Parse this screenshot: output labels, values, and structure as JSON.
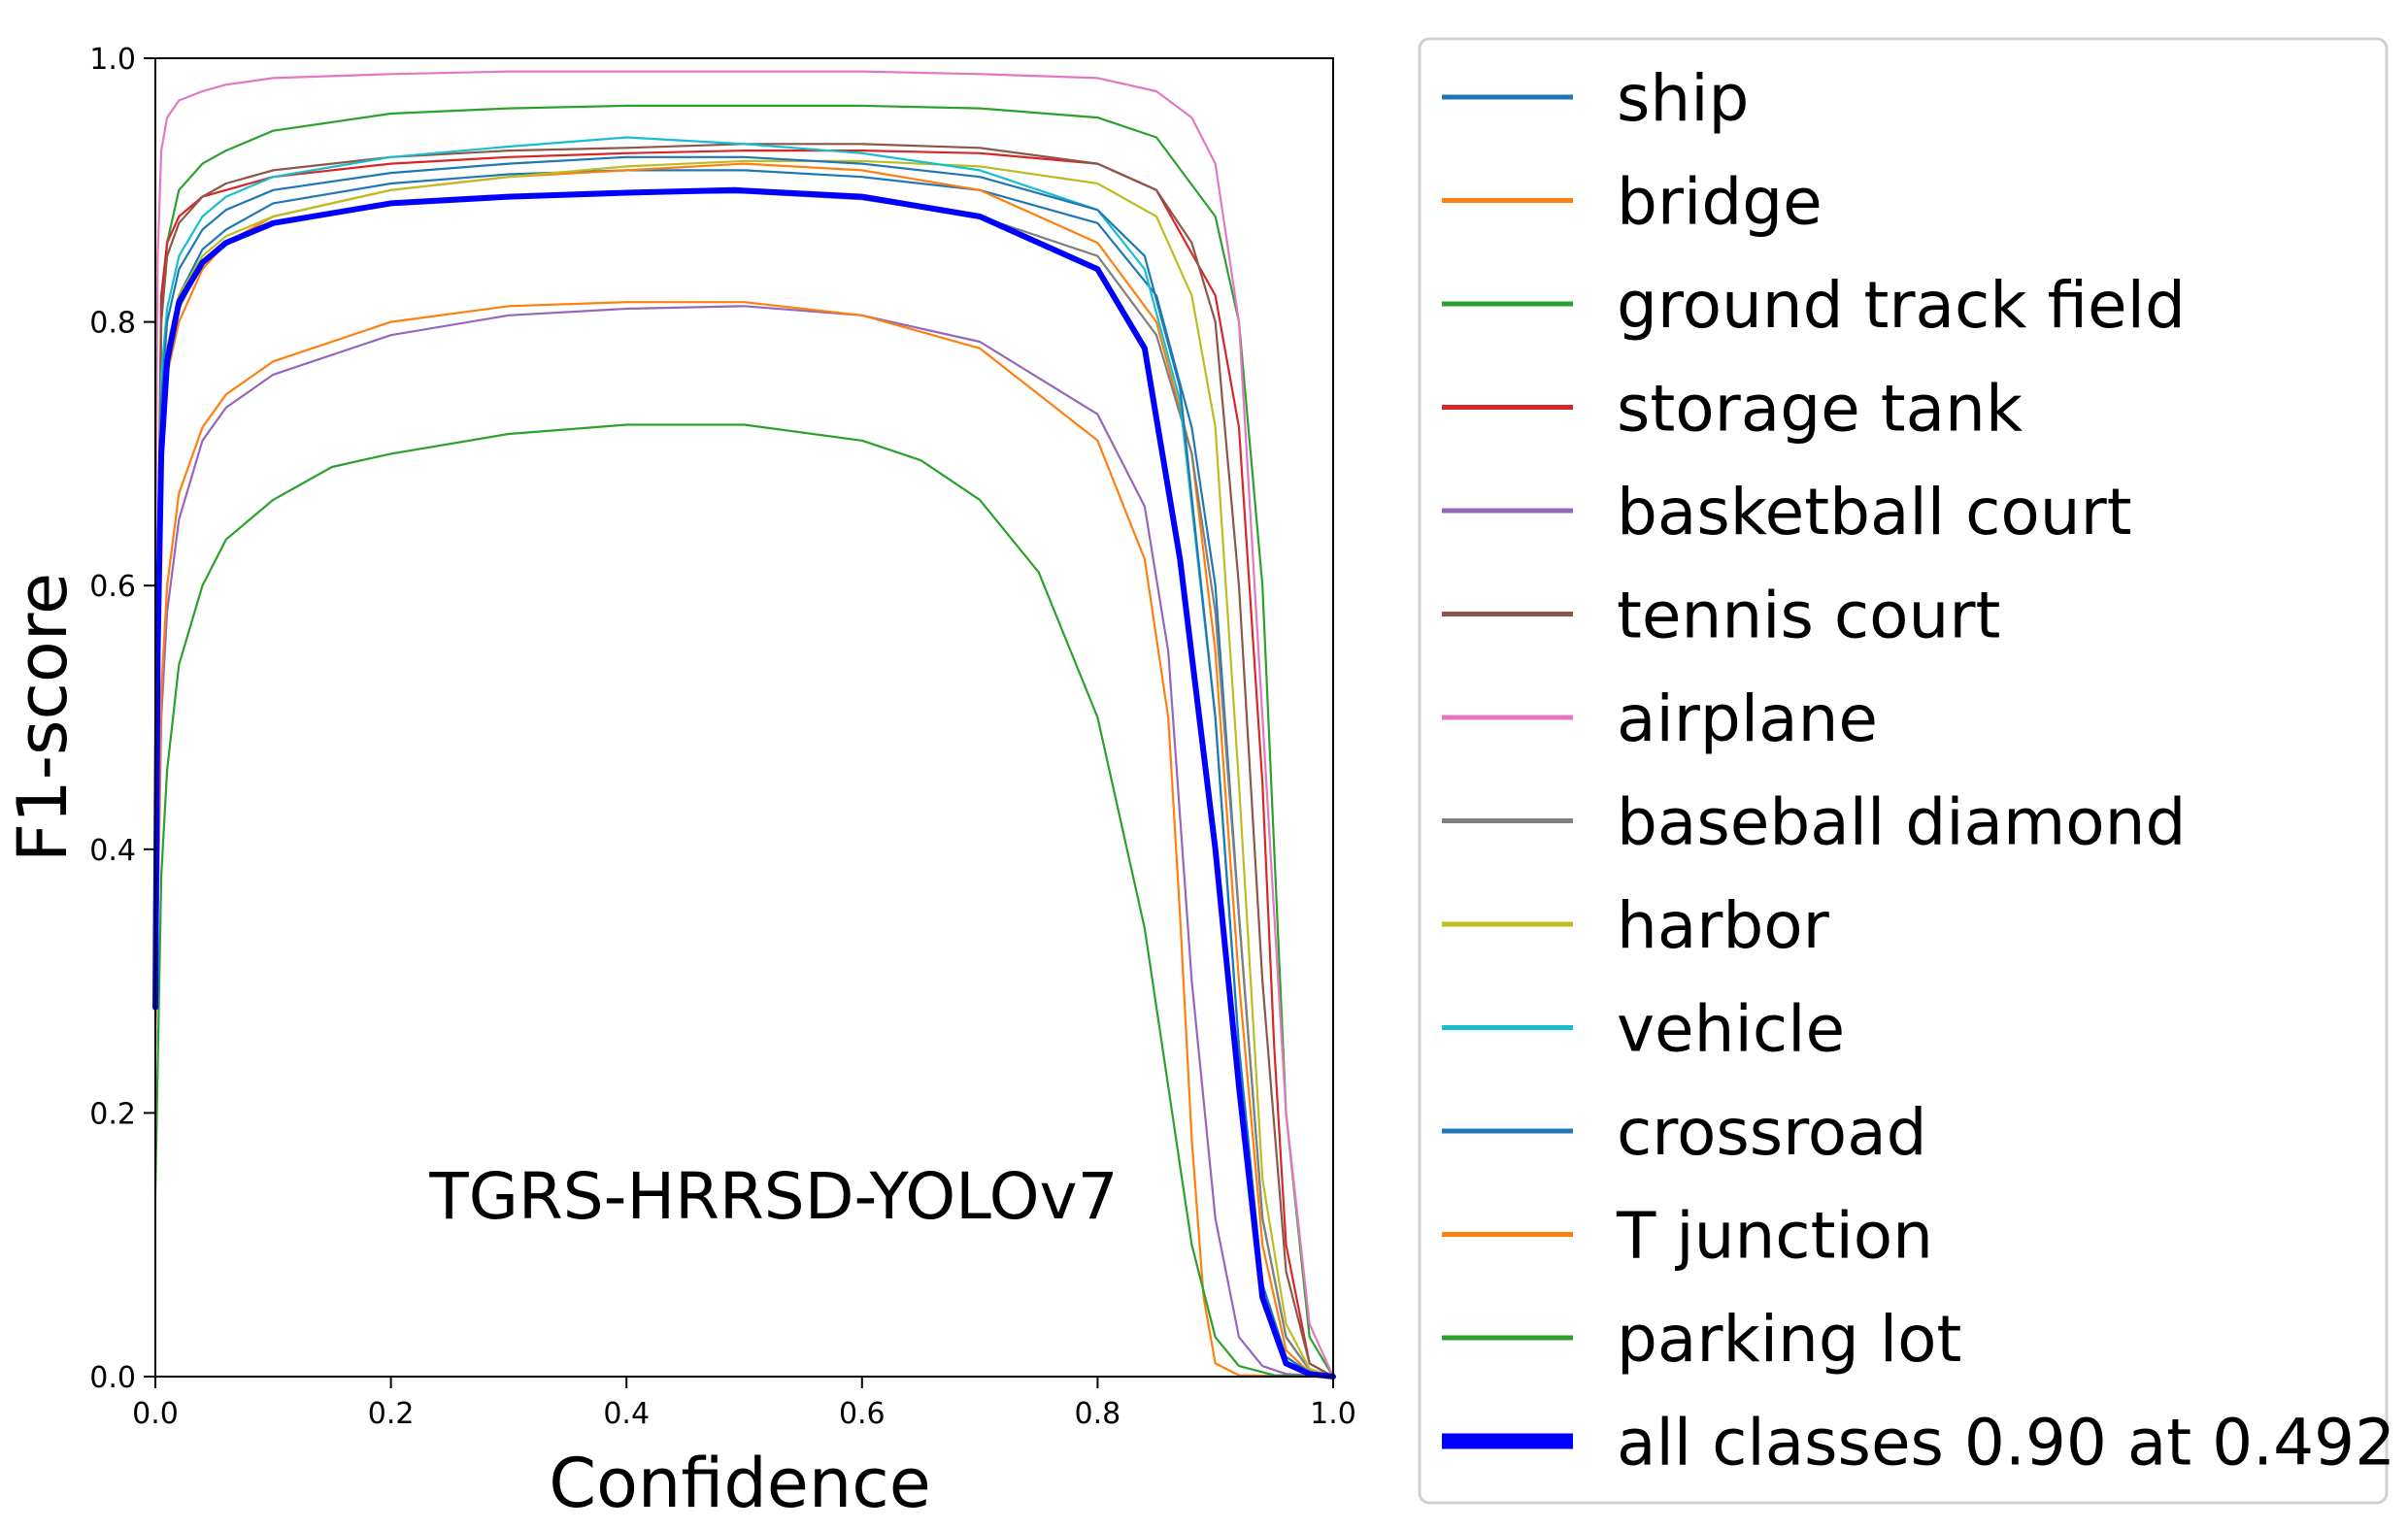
{
  "chart_data": {
    "type": "line",
    "title": "",
    "annotation": "TGRS-HRRSD-YOLOv7",
    "xlabel": "Confidence",
    "ylabel": "F1-score",
    "xlim": [
      0.0,
      1.0
    ],
    "ylim": [
      0.0,
      1.0
    ],
    "xticks": [
      0.0,
      0.2,
      0.4,
      0.6,
      0.8,
      1.0
    ],
    "yticks": [
      0.0,
      0.2,
      0.4,
      0.6,
      0.8,
      1.0
    ],
    "xtick_labels": [
      "0.0",
      "0.2",
      "0.4",
      "0.6",
      "0.8",
      "1.0"
    ],
    "ytick_labels": [
      "0.0",
      "0.2",
      "0.4",
      "0.6",
      "0.8",
      "1.0"
    ],
    "grid": false,
    "legend_position": "right-outside",
    "series": [
      {
        "name": "ship",
        "color": "#1f77b4",
        "width": 2.2,
        "x": [
          0.0,
          0.005,
          0.01,
          0.02,
          0.04,
          0.06,
          0.1,
          0.2,
          0.3,
          0.4,
          0.5,
          0.6,
          0.7,
          0.8,
          0.85,
          0.88,
          0.9,
          0.92,
          0.94,
          0.96,
          0.98,
          1.0
        ],
        "y": [
          0.35,
          0.72,
          0.78,
          0.82,
          0.855,
          0.87,
          0.89,
          0.905,
          0.912,
          0.915,
          0.915,
          0.91,
          0.9,
          0.875,
          0.82,
          0.72,
          0.6,
          0.35,
          0.12,
          0.03,
          0.005,
          0.0
        ]
      },
      {
        "name": "bridge",
        "color": "#ff7f0e",
        "width": 2.2,
        "x": [
          0.0,
          0.005,
          0.01,
          0.02,
          0.04,
          0.06,
          0.1,
          0.2,
          0.3,
          0.4,
          0.5,
          0.6,
          0.7,
          0.8,
          0.85,
          0.88,
          0.9,
          0.92,
          0.94,
          0.96,
          0.98,
          1.0
        ],
        "y": [
          0.3,
          0.7,
          0.76,
          0.8,
          0.84,
          0.86,
          0.88,
          0.9,
          0.91,
          0.915,
          0.92,
          0.915,
          0.9,
          0.86,
          0.8,
          0.7,
          0.55,
          0.3,
          0.1,
          0.02,
          0.003,
          0.0
        ]
      },
      {
        "name": "ground track field",
        "color": "#2ca02c",
        "width": 2.2,
        "x": [
          0.0,
          0.005,
          0.01,
          0.02,
          0.04,
          0.06,
          0.1,
          0.2,
          0.3,
          0.4,
          0.5,
          0.6,
          0.7,
          0.8,
          0.85,
          0.9,
          0.92,
          0.94,
          0.95,
          0.96,
          0.98,
          1.0
        ],
        "y": [
          0.4,
          0.8,
          0.86,
          0.9,
          0.92,
          0.93,
          0.945,
          0.958,
          0.962,
          0.964,
          0.964,
          0.964,
          0.962,
          0.955,
          0.94,
          0.88,
          0.8,
          0.6,
          0.4,
          0.2,
          0.03,
          0.0
        ]
      },
      {
        "name": "storage tank",
        "color": "#d62728",
        "width": 2.2,
        "x": [
          0.0,
          0.005,
          0.01,
          0.02,
          0.04,
          0.06,
          0.1,
          0.2,
          0.3,
          0.4,
          0.5,
          0.6,
          0.7,
          0.8,
          0.85,
          0.9,
          0.92,
          0.94,
          0.95,
          0.96,
          0.98,
          1.0
        ],
        "y": [
          0.45,
          0.82,
          0.86,
          0.88,
          0.895,
          0.9,
          0.91,
          0.92,
          0.925,
          0.928,
          0.93,
          0.93,
          0.928,
          0.92,
          0.9,
          0.82,
          0.72,
          0.45,
          0.25,
          0.1,
          0.01,
          0.0
        ]
      },
      {
        "name": "basketball court",
        "color": "#9467bd",
        "width": 2.2,
        "x": [
          0.0,
          0.005,
          0.01,
          0.02,
          0.04,
          0.06,
          0.1,
          0.2,
          0.3,
          0.4,
          0.5,
          0.6,
          0.7,
          0.8,
          0.84,
          0.86,
          0.88,
          0.9,
          0.92,
          0.94,
          0.96,
          1.0
        ],
        "y": [
          0.25,
          0.5,
          0.58,
          0.65,
          0.71,
          0.735,
          0.76,
          0.79,
          0.805,
          0.81,
          0.812,
          0.805,
          0.785,
          0.73,
          0.66,
          0.55,
          0.3,
          0.12,
          0.03,
          0.008,
          0.002,
          0.0
        ]
      },
      {
        "name": "tennis court",
        "color": "#8c564b",
        "width": 2.2,
        "x": [
          0.0,
          0.005,
          0.01,
          0.02,
          0.04,
          0.06,
          0.1,
          0.2,
          0.3,
          0.4,
          0.5,
          0.6,
          0.7,
          0.8,
          0.85,
          0.88,
          0.9,
          0.92,
          0.94,
          0.96,
          0.98,
          1.0
        ],
        "y": [
          0.45,
          0.8,
          0.85,
          0.875,
          0.895,
          0.905,
          0.915,
          0.925,
          0.93,
          0.932,
          0.935,
          0.935,
          0.932,
          0.92,
          0.9,
          0.86,
          0.8,
          0.6,
          0.3,
          0.08,
          0.01,
          0.0
        ]
      },
      {
        "name": "airplane",
        "color": "#e377c2",
        "width": 2.2,
        "x": [
          0.0,
          0.002,
          0.005,
          0.01,
          0.02,
          0.04,
          0.06,
          0.1,
          0.2,
          0.3,
          0.4,
          0.5,
          0.6,
          0.7,
          0.8,
          0.85,
          0.88,
          0.9,
          0.92,
          0.94,
          0.96,
          0.98,
          1.0
        ],
        "y": [
          0.6,
          0.85,
          0.93,
          0.955,
          0.968,
          0.975,
          0.98,
          0.985,
          0.988,
          0.99,
          0.99,
          0.99,
          0.99,
          0.988,
          0.985,
          0.975,
          0.955,
          0.92,
          0.8,
          0.5,
          0.2,
          0.04,
          0.0
        ]
      },
      {
        "name": "baseball diamond",
        "color": "#7f7f7f",
        "width": 2.2,
        "x": [
          0.0,
          0.005,
          0.01,
          0.02,
          0.04,
          0.06,
          0.1,
          0.2,
          0.3,
          0.4,
          0.5,
          0.6,
          0.7,
          0.8,
          0.85,
          0.88,
          0.9,
          0.92,
          0.94,
          0.96,
          0.98,
          1.0
        ],
        "y": [
          0.3,
          0.7,
          0.77,
          0.81,
          0.845,
          0.86,
          0.875,
          0.89,
          0.895,
          0.898,
          0.898,
          0.893,
          0.88,
          0.85,
          0.79,
          0.7,
          0.58,
          0.35,
          0.12,
          0.03,
          0.005,
          0.0
        ]
      },
      {
        "name": "harbor",
        "color": "#bcbd22",
        "width": 2.2,
        "x": [
          0.0,
          0.005,
          0.01,
          0.02,
          0.04,
          0.06,
          0.1,
          0.2,
          0.3,
          0.4,
          0.5,
          0.6,
          0.7,
          0.8,
          0.85,
          0.88,
          0.9,
          0.92,
          0.94,
          0.96,
          0.98,
          1.0
        ],
        "y": [
          0.35,
          0.72,
          0.78,
          0.82,
          0.85,
          0.865,
          0.88,
          0.9,
          0.91,
          0.918,
          0.922,
          0.922,
          0.918,
          0.905,
          0.88,
          0.82,
          0.72,
          0.45,
          0.15,
          0.04,
          0.006,
          0.0
        ]
      },
      {
        "name": "vehicle",
        "color": "#17becf",
        "width": 2.2,
        "x": [
          0.0,
          0.005,
          0.01,
          0.02,
          0.04,
          0.06,
          0.1,
          0.2,
          0.3,
          0.4,
          0.5,
          0.6,
          0.7,
          0.8,
          0.84,
          0.87,
          0.9,
          0.92,
          0.94,
          0.96,
          0.98,
          1.0
        ],
        "y": [
          0.4,
          0.76,
          0.81,
          0.85,
          0.88,
          0.895,
          0.91,
          0.925,
          0.933,
          0.94,
          0.935,
          0.928,
          0.915,
          0.885,
          0.84,
          0.74,
          0.5,
          0.25,
          0.07,
          0.015,
          0.003,
          0.0
        ]
      },
      {
        "name": "crossroad",
        "color": "#1f77b4",
        "width": 2.2,
        "x": [
          0.0,
          0.005,
          0.01,
          0.02,
          0.04,
          0.06,
          0.1,
          0.2,
          0.3,
          0.4,
          0.5,
          0.6,
          0.7,
          0.8,
          0.84,
          0.87,
          0.9,
          0.92,
          0.94,
          0.96,
          0.98,
          1.0
        ],
        "y": [
          0.35,
          0.74,
          0.8,
          0.84,
          0.87,
          0.885,
          0.9,
          0.913,
          0.92,
          0.925,
          0.925,
          0.92,
          0.91,
          0.885,
          0.85,
          0.75,
          0.5,
          0.25,
          0.07,
          0.015,
          0.003,
          0.0
        ]
      },
      {
        "name": "T junction",
        "color": "#ff7f0e",
        "width": 2.2,
        "x": [
          0.0,
          0.005,
          0.01,
          0.02,
          0.04,
          0.06,
          0.1,
          0.2,
          0.3,
          0.4,
          0.5,
          0.6,
          0.7,
          0.8,
          0.84,
          0.86,
          0.87,
          0.88,
          0.89,
          0.9,
          0.92,
          1.0
        ],
        "y": [
          0.25,
          0.52,
          0.6,
          0.67,
          0.72,
          0.745,
          0.77,
          0.8,
          0.812,
          0.815,
          0.815,
          0.805,
          0.78,
          0.71,
          0.62,
          0.5,
          0.35,
          0.18,
          0.06,
          0.01,
          0.001,
          0.0
        ]
      },
      {
        "name": "parking lot",
        "color": "#2ca02c",
        "width": 2.2,
        "x": [
          0.0,
          0.005,
          0.01,
          0.02,
          0.04,
          0.06,
          0.1,
          0.15,
          0.2,
          0.3,
          0.4,
          0.5,
          0.6,
          0.65,
          0.7,
          0.75,
          0.8,
          0.84,
          0.86,
          0.88,
          0.9,
          0.92,
          0.95,
          1.0
        ],
        "y": [
          0.14,
          0.38,
          0.46,
          0.54,
          0.6,
          0.635,
          0.665,
          0.69,
          0.7,
          0.715,
          0.722,
          0.722,
          0.71,
          0.695,
          0.665,
          0.61,
          0.5,
          0.34,
          0.22,
          0.1,
          0.03,
          0.008,
          0.001,
          0.0
        ]
      },
      {
        "name": "all classes 0.90 at 0.492",
        "color": "#0000ff",
        "width": 6,
        "x": [
          0.0,
          0.002,
          0.005,
          0.01,
          0.02,
          0.04,
          0.06,
          0.1,
          0.2,
          0.3,
          0.4,
          0.492,
          0.6,
          0.7,
          0.8,
          0.84,
          0.87,
          0.9,
          0.92,
          0.94,
          0.96,
          0.98,
          1.0
        ],
        "y": [
          0.28,
          0.55,
          0.7,
          0.77,
          0.815,
          0.845,
          0.86,
          0.875,
          0.89,
          0.895,
          0.898,
          0.9,
          0.895,
          0.88,
          0.84,
          0.78,
          0.62,
          0.4,
          0.22,
          0.06,
          0.01,
          0.002,
          0.0
        ]
      }
    ]
  }
}
